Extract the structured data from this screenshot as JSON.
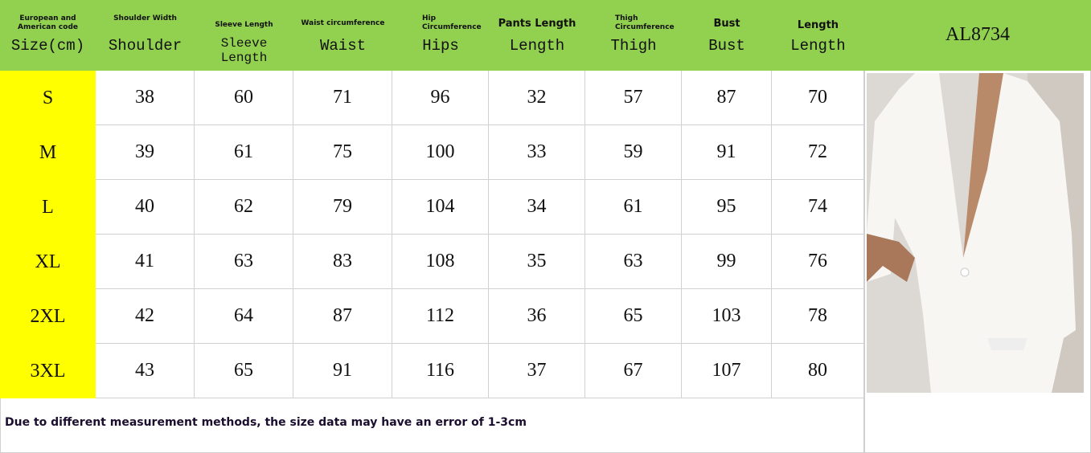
{
  "header": {
    "columns": [
      {
        "sub": "European and American code",
        "main": "Size(cm)"
      },
      {
        "sub": "Shoulder Width",
        "main": "Shoulder"
      },
      {
        "sub": "Sleeve Length",
        "main": "Sleeve Length"
      },
      {
        "sub": "Waist circumference",
        "main": "Waist"
      },
      {
        "sub": "Hip Circumference",
        "main": "Hips"
      },
      {
        "sub": "Pants Length",
        "main": "Length"
      },
      {
        "sub": "Thigh Circumference",
        "main": "Thigh"
      },
      {
        "sub": "Bust",
        "main": "Bust"
      },
      {
        "sub": "Length",
        "main": "Length"
      }
    ],
    "product_code": "AL8734"
  },
  "rows": [
    [
      "S",
      "38",
      "60",
      "71",
      "96",
      "32",
      "57",
      "87",
      "70"
    ],
    [
      "M",
      "39",
      "61",
      "75",
      "100",
      "33",
      "59",
      "91",
      "72"
    ],
    [
      "L",
      "40",
      "62",
      "79",
      "104",
      "34",
      "61",
      "95",
      "74"
    ],
    [
      "XL",
      "41",
      "63",
      "83",
      "108",
      "35",
      "63",
      "99",
      "76"
    ],
    [
      "2XL",
      "42",
      "64",
      "87",
      "112",
      "36",
      "65",
      "103",
      "78"
    ],
    [
      "3XL",
      "43",
      "65",
      "91",
      "116",
      "37",
      "67",
      "107",
      "80"
    ]
  ],
  "note": "Due to different measurement methods, the size data may have an error of 1-3cm",
  "colors": {
    "header": "#92d050",
    "size_column": "#ffff00"
  }
}
